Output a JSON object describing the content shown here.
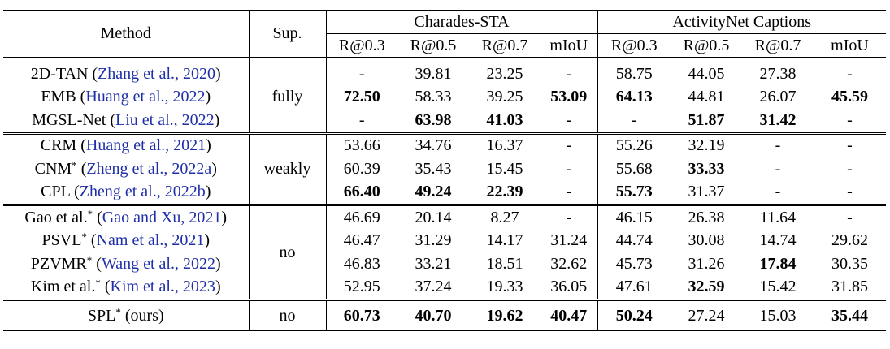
{
  "header": {
    "method": "Method",
    "sup": "Sup.",
    "dataset1": "Charades-STA",
    "dataset2": "ActivityNet Captions",
    "metrics": [
      "R@0.3",
      "R@0.5",
      "R@0.7",
      "mIoU",
      "R@0.3",
      "R@0.5",
      "R@0.7",
      "mIoU"
    ]
  },
  "groups": [
    {
      "sup": "fully",
      "rows": [
        {
          "name": "2D-TAN",
          "star": "",
          "cite": "Zhang et al., 2020",
          "cells": [
            "-",
            "39.81",
            "23.25",
            "-",
            "58.75",
            "44.05",
            "27.38",
            "-"
          ],
          "bold": [
            false,
            false,
            false,
            false,
            false,
            false,
            false,
            false
          ]
        },
        {
          "name": "EMB",
          "star": "",
          "cite": "Huang et al., 2022",
          "cells": [
            "72.50",
            "58.33",
            "39.25",
            "53.09",
            "64.13",
            "44.81",
            "26.07",
            "45.59"
          ],
          "bold": [
            true,
            false,
            false,
            true,
            true,
            false,
            false,
            true
          ]
        },
        {
          "name": "MGSL-Net",
          "star": "",
          "cite": "Liu et al., 2022",
          "cells": [
            "-",
            "63.98",
            "41.03",
            "-",
            "-",
            "51.87",
            "31.42",
            "-"
          ],
          "bold": [
            false,
            true,
            true,
            false,
            false,
            true,
            true,
            false
          ]
        }
      ]
    },
    {
      "sup": "weakly",
      "rows": [
        {
          "name": "CRM",
          "star": "",
          "cite": "Huang et al., 2021",
          "cells": [
            "53.66",
            "34.76",
            "16.37",
            "-",
            "55.26",
            "32.19",
            "-",
            "-"
          ],
          "bold": [
            false,
            false,
            false,
            false,
            false,
            false,
            false,
            false
          ]
        },
        {
          "name": "CNM",
          "star": "*",
          "cite": "Zheng et al., 2022a",
          "cells": [
            "60.39",
            "35.43",
            "15.45",
            "-",
            "55.68",
            "33.33",
            "-",
            "-"
          ],
          "bold": [
            false,
            false,
            false,
            false,
            false,
            true,
            false,
            false
          ]
        },
        {
          "name": "CPL",
          "star": "",
          "cite": "Zheng et al., 2022b",
          "cells": [
            "66.40",
            "49.24",
            "22.39",
            "-",
            "55.73",
            "31.37",
            "-",
            "-"
          ],
          "bold": [
            true,
            true,
            true,
            false,
            true,
            false,
            false,
            false
          ]
        }
      ]
    },
    {
      "sup": "no",
      "rows": [
        {
          "name": "Gao et al.",
          "star": "*",
          "cite": "Gao and Xu, 2021",
          "cells": [
            "46.69",
            "20.14",
            "8.27",
            "-",
            "46.15",
            "26.38",
            "11.64",
            "-"
          ],
          "bold": [
            false,
            false,
            false,
            false,
            false,
            false,
            false,
            false
          ]
        },
        {
          "name": "PSVL",
          "star": "*",
          "cite": "Nam et al., 2021",
          "cells": [
            "46.47",
            "31.29",
            "14.17",
            "31.24",
            "44.74",
            "30.08",
            "14.74",
            "29.62"
          ],
          "bold": [
            false,
            false,
            false,
            false,
            false,
            false,
            false,
            false
          ]
        },
        {
          "name": "PZVMR",
          "star": "*",
          "cite": "Wang et al., 2022",
          "cells": [
            "46.83",
            "33.21",
            "18.51",
            "32.62",
            "45.73",
            "31.26",
            "17.84",
            "30.35"
          ],
          "bold": [
            false,
            false,
            false,
            false,
            false,
            false,
            true,
            false
          ]
        },
        {
          "name": "Kim et al.",
          "star": "*",
          "cite": "Kim et al., 2023",
          "cells": [
            "52.95",
            "37.24",
            "19.33",
            "36.05",
            "47.61",
            "32.59",
            "15.42",
            "31.85"
          ],
          "bold": [
            false,
            false,
            false,
            false,
            false,
            true,
            false,
            false
          ]
        }
      ]
    }
  ],
  "ours": {
    "name": "SPL",
    "star": "*",
    "suffix": "(ours)",
    "sup": "no",
    "cells": [
      "60.73",
      "40.70",
      "19.62",
      "40.47",
      "50.24",
      "27.24",
      "15.03",
      "35.44"
    ],
    "bold": [
      true,
      true,
      true,
      true,
      true,
      false,
      false,
      true
    ]
  }
}
